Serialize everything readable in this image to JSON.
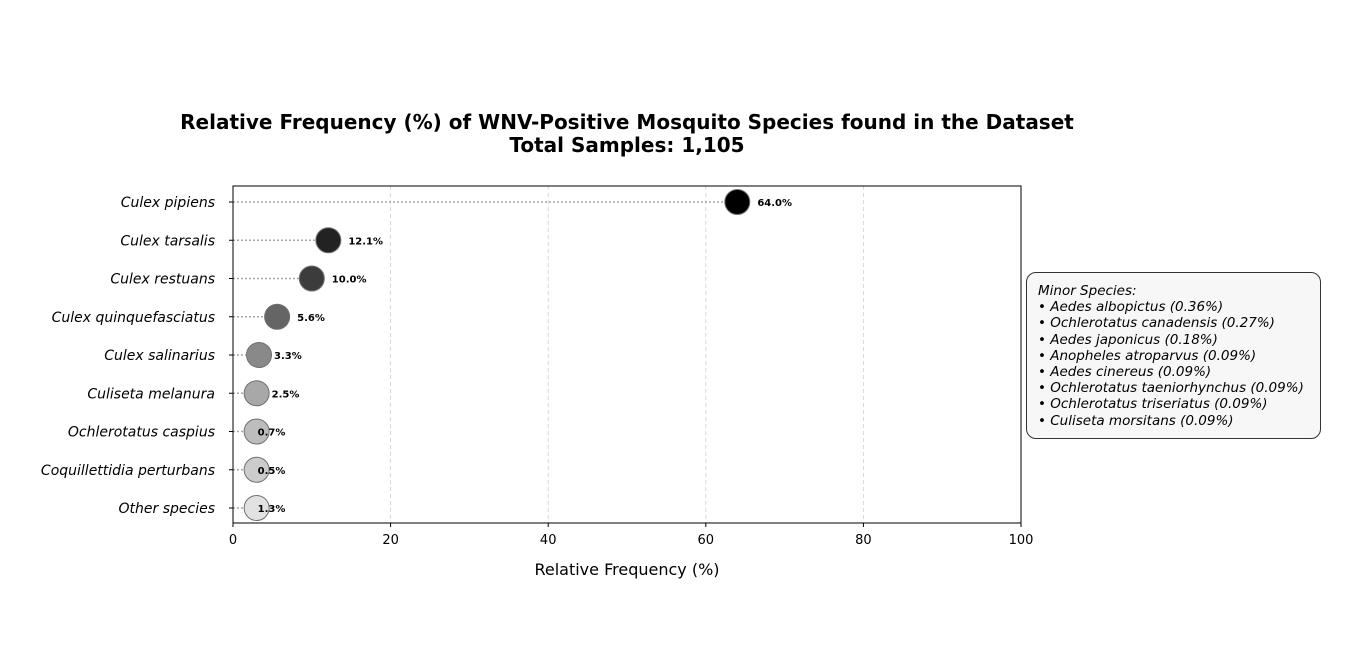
{
  "chart_data": {
    "type": "scatter",
    "title": "Relative Frequency (%) of WNV-Positive Mosquito Species found in the Dataset",
    "subtitle": "Total Samples: 1,105",
    "xlabel": "Relative Frequency (%)",
    "ylabel": "",
    "xlim": [
      0,
      100
    ],
    "xticks": [
      "0",
      "20",
      "40",
      "60",
      "80",
      "100"
    ],
    "grid": "x-axis, dashed",
    "categories": [
      "Culex pipiens",
      "Culex tarsalis",
      "Culex restuans",
      "Culex quinquefasciatus",
      "Culex salinarius",
      "Culiseta melanura",
      "Ochlerotatus caspius",
      "Coquillettidia perturbans",
      "Other species"
    ],
    "values": [
      64.0,
      12.1,
      10.0,
      5.6,
      3.3,
      2.5,
      0.7,
      0.5,
      1.3
    ],
    "value_labels": [
      "64.0%",
      "12.1%",
      "10.0%",
      "5.6%",
      "3.3%",
      "2.5%",
      "0.7%",
      "0.5%",
      "1.3%"
    ],
    "marker_colors": [
      "#000000",
      "#222222",
      "#3c3c3c",
      "#656565",
      "#898989",
      "#a8a8a8",
      "#bdbdbd",
      "#cccccc",
      "#e2e2e2"
    ],
    "annotation": {
      "heading": "Minor Species:",
      "items": [
        "• Aedes albopictus (0.36%)",
        "• Ochlerotatus canadensis (0.27%)",
        "• Aedes japonicus (0.18%)",
        "• Anopheles atroparvus (0.09%)",
        "• Aedes cinereus (0.09%)",
        "• Ochlerotatus taeniorhynchus (0.09%)",
        "• Ochlerotatus triseriatus (0.09%)",
        "• Culiseta morsitans (0.09%)"
      ]
    }
  }
}
